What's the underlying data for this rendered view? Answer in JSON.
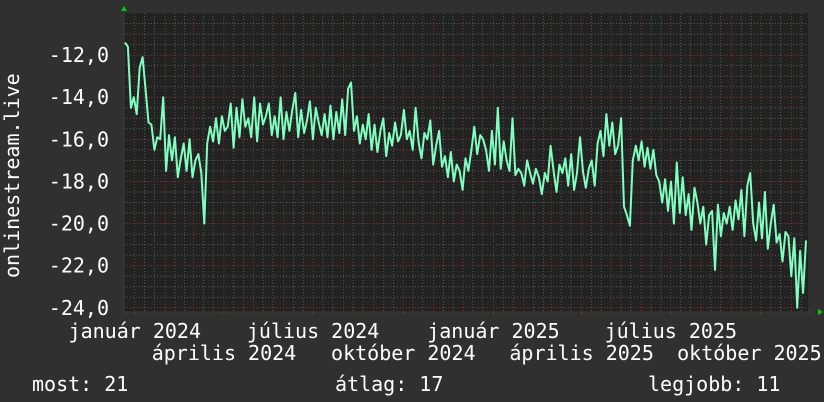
{
  "chart_data": {
    "type": "line",
    "title": "",
    "ylabel": "onlinestream.live",
    "xlabel": "",
    "ylim": [
      -24.2,
      -10.0
    ],
    "x_range": [
      "2023-12-21",
      "2025-11-18"
    ],
    "y_ticks": [
      "-12,0",
      "-14,0",
      "-16,0",
      "-18,0",
      "-20,0",
      "-22,0",
      "-24,0"
    ],
    "y_tick_values": [
      -12,
      -14,
      -16,
      -18,
      -20,
      -22,
      -24
    ],
    "x_ticks": [
      {
        "date": "2024-01-01",
        "label": "január 2024"
      },
      {
        "date": "2024-04-01",
        "label": "április 2024"
      },
      {
        "date": "2024-07-01",
        "label": "július 2024"
      },
      {
        "date": "2024-10-01",
        "label": "október 2024"
      },
      {
        "date": "2025-01-01",
        "label": "január 2025"
      },
      {
        "date": "2025-04-01",
        "label": "április 2025"
      },
      {
        "date": "2025-07-01",
        "label": "július 2025"
      },
      {
        "date": "2025-10-01",
        "label": "október 2025"
      }
    ],
    "grid": true,
    "series": [
      {
        "color": "#80ffc0",
        "values": [
          -11.4,
          -11.6,
          -14.5,
          -14.0,
          -14.8,
          -12.6,
          -12.1,
          -13.6,
          -15.2,
          -15.3,
          -16.5,
          -15.9,
          -16.0,
          -14.0,
          -17.5,
          -15.8,
          -17.0,
          -15.9,
          -17.8,
          -16.9,
          -16.2,
          -17.5,
          -16.0,
          -17.8,
          -17.0,
          -16.7,
          -17.6,
          -20.0,
          -16.2,
          -15.4,
          -16.1,
          -15.0,
          -16.2,
          -14.9,
          -15.6,
          -15.4,
          -14.3,
          -16.4,
          -14.5,
          -15.9,
          -14.1,
          -15.4,
          -15.0,
          -15.9,
          -14.0,
          -16.1,
          -14.3,
          -15.3,
          -14.9,
          -14.3,
          -15.8,
          -14.9,
          -15.9,
          -14.0,
          -16.0,
          -14.7,
          -15.6,
          -14.6,
          -13.8,
          -15.9,
          -14.6,
          -15.7,
          -15.1,
          -14.2,
          -16.0,
          -14.5,
          -15.2,
          -15.8,
          -14.8,
          -15.9,
          -14.4,
          -16.0,
          -14.7,
          -15.7,
          -14.1,
          -15.8,
          -13.6,
          -13.3,
          -15.6,
          -14.9,
          -16.2,
          -15.3,
          -16.0,
          -14.8,
          -16.5,
          -15.3,
          -16.6,
          -15.6,
          -15.0,
          -16.8,
          -15.7,
          -16.3,
          -15.2,
          -16.1,
          -15.8,
          -14.6,
          -16.0,
          -15.6,
          -16.5,
          -14.5,
          -16.1,
          -16.9,
          -15.7,
          -16.0,
          -15.1,
          -17.2,
          -16.3,
          -15.6,
          -17.3,
          -16.8,
          -17.8,
          -16.6,
          -18.0,
          -17.2,
          -17.5,
          -18.4,
          -16.9,
          -17.5,
          -16.5,
          -15.4,
          -16.7,
          -15.8,
          -16.0,
          -16.5,
          -17.5,
          -15.6,
          -17.2,
          -14.5,
          -17.4,
          -16.1,
          -17.0,
          -17.5,
          -15.0,
          -17.7,
          -17.4,
          -17.6,
          -18.2,
          -17.0,
          -17.6,
          -18.1,
          -17.4,
          -17.8,
          -18.6,
          -17.6,
          -18.0,
          -16.3,
          -17.5,
          -18.5,
          -17.2,
          -17.6,
          -16.9,
          -18.2,
          -16.7,
          -18.4,
          -17.6,
          -15.9,
          -17.5,
          -18.3,
          -17.4,
          -17.0,
          -18.2,
          -16.2,
          -15.6,
          -16.8,
          -14.8,
          -16.3,
          -15.2,
          -16.7,
          -16.3,
          -15.0,
          -19.2,
          -19.6,
          -20.1,
          -17.0,
          -16.3,
          -17.0,
          -16.1,
          -17.3,
          -16.4,
          -17.4,
          -16.5,
          -17.7,
          -18.0,
          -19.0,
          -17.9,
          -19.4,
          -18.0,
          -20.0,
          -17.1,
          -19.5,
          -17.8,
          -19.6,
          -18.6,
          -20.3,
          -18.3,
          -19.0,
          -20.0,
          -19.2,
          -21.0,
          -19.6,
          -19.4,
          -22.2,
          -19.1,
          -20.6,
          -19.5,
          -20.0,
          -19.2,
          -20.3,
          -18.9,
          -19.8,
          -18.4,
          -20.6,
          -18.2,
          -17.6,
          -20.0,
          -20.8,
          -19.0,
          -20.7,
          -18.5,
          -21.2,
          -20.0,
          -19.1,
          -20.9,
          -20.5,
          -21.8,
          -20.4,
          -20.6,
          -22.5,
          -20.7,
          -24.0,
          -21.3,
          -23.3,
          -20.8
        ]
      }
    ]
  },
  "colors": {
    "background": "#303030",
    "plot": "#222222",
    "line": "#80ffc0",
    "major_grid": "#8a3030",
    "minor_grid": "#5a5a5a",
    "arrow": "#00cc00"
  },
  "stats": {
    "current": "most: 21",
    "average": "átlag: 17",
    "best": "legjobb: 11"
  }
}
